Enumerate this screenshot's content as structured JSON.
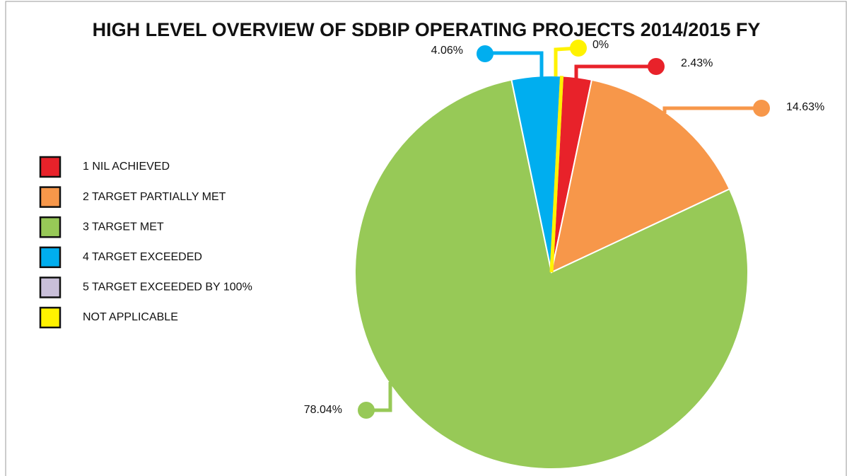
{
  "chart_data": {
    "type": "pie",
    "title": "HIGH LEVEL OVERVIEW OF SDBIP OPERATING PROJECTS 2014/2015 FY",
    "categories": [
      "1 NIL ACHIEVED",
      "2 TARGET PARTIALLY MET",
      "3 TARGET MET",
      "4 TARGET EXCEEDED",
      "5 TARGET EXCEEDED BY 100%",
      "NOT APPLICABLE"
    ],
    "values": [
      2.43,
      14.63,
      78.04,
      4.06,
      0,
      0
    ],
    "value_labels": [
      "2.43%",
      "14.63%",
      "78.04%",
      "4.06%",
      null,
      "0%"
    ],
    "colors": [
      "#e8222a",
      "#f7974a",
      "#97c957",
      "#00aeef",
      "#c9bfd9",
      "#fff200"
    ],
    "legend": "left"
  }
}
